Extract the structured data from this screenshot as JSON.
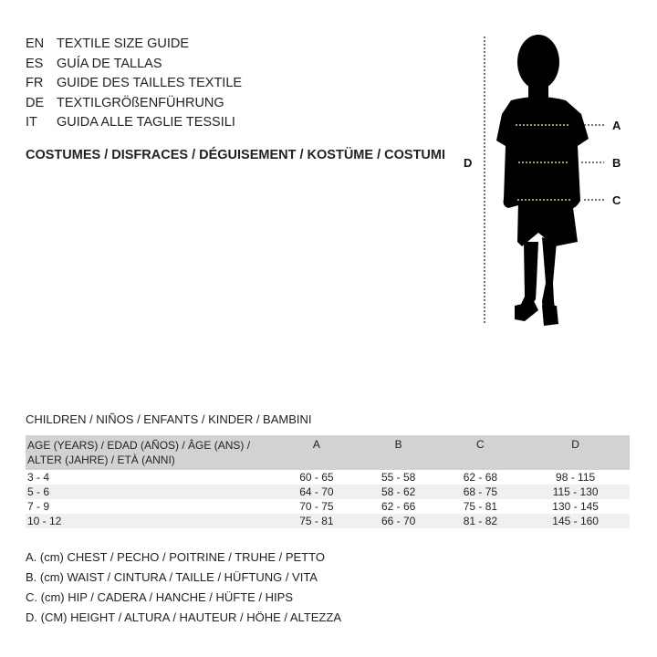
{
  "languages": [
    {
      "code": "EN",
      "title": "TEXTILE SIZE GUIDE"
    },
    {
      "code": "ES",
      "title": "GUÍA DE TALLAS"
    },
    {
      "code": "FR",
      "title": "GUIDE DES TAILLES TEXTILE"
    },
    {
      "code": "DE",
      "title": "TEXTILGRÖßENFÜHRUNG"
    },
    {
      "code": "IT",
      "title": "GUIDA ALLE TAGLIE TESSILI"
    }
  ],
  "category": "COSTUMES / DISFRACES / DÉGUISEMENT / KOSTÜME / COSTUMI",
  "figure": {
    "labels": {
      "a": "A",
      "b": "B",
      "c": "C",
      "d": "D"
    },
    "measure_line_color": "#e8d44d"
  },
  "section": "CHILDREN / NIÑOS / ENFANTS / KINDER / BAMBINI",
  "table": {
    "headers": [
      "AGE (YEARS) / EDAD (AÑOS) / ÂGE (ANS) / ALTER (JAHRE) / ETÀ (ANNI)",
      "A",
      "B",
      "C",
      "D"
    ],
    "rows": [
      [
        "3 - 4",
        "60 - 65",
        "55 - 58",
        "62 - 68",
        "98 - 115"
      ],
      [
        "5 - 6",
        "64 - 70",
        "58 - 62",
        "68 - 75",
        "115 - 130"
      ],
      [
        "7 - 9",
        "70 - 75",
        "62 - 66",
        "75 - 81",
        "130 - 145"
      ],
      [
        "10 - 12",
        "75 - 81",
        "66 - 70",
        "81 - 82",
        "145 - 160"
      ]
    ]
  },
  "notes": [
    "A. (cm) CHEST / PECHO / POITRINE / TRUHE / PETTO",
    "B. (cm) WAIST / CINTURA / TAILLE / HÜFTUNG / VITA",
    "C. (cm) HIP / CADERA / HANCHE / HÜFTE / HIPS",
    "D. (CM) HEIGHT / ALTURA / HAUTEUR / HÖHE / ALTEZZA"
  ]
}
